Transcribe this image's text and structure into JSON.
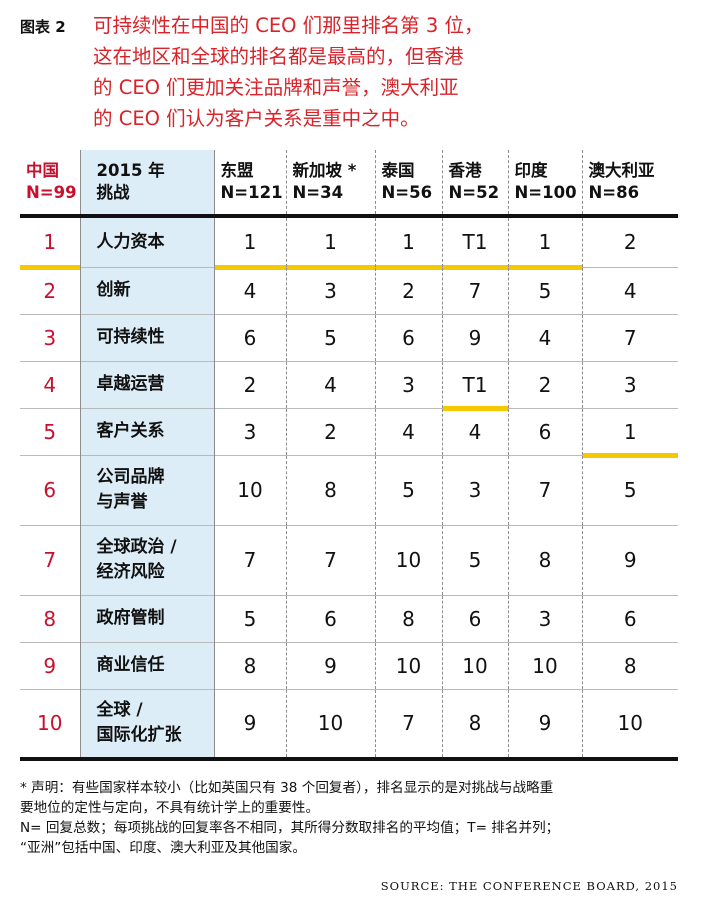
{
  "figure": {
    "label": "图表 2",
    "caption_lines": [
      "可持续性在中国的 CEO 们那里排名第 3 位，",
      "这在地区和全球的排名都是最高的，但香港",
      "的 CEO 们更加关注品牌和声誉，澳大利亚",
      "的 CEO 们认为客户关系是重中之中。"
    ]
  },
  "table": {
    "headers": {
      "china_line1": "中国",
      "china_line2": "N=99",
      "challenge_line1": "2015 年",
      "challenge_line2": "挑战",
      "countries": [
        {
          "name": "东盟",
          "n": "N=121"
        },
        {
          "name": "新加坡 *",
          "n": "N=34"
        },
        {
          "name": "泰国",
          "n": "N=56"
        },
        {
          "name": "香港",
          "n": "N=52"
        },
        {
          "name": "印度",
          "n": "N=100"
        },
        {
          "name": "澳大利亚",
          "n": "N=86"
        }
      ]
    },
    "rows": [
      {
        "rank": "1",
        "challenge": [
          "人力资本"
        ],
        "values": [
          "1",
          "1",
          "1",
          "T1",
          "1",
          "2"
        ]
      },
      {
        "rank": "2",
        "challenge": [
          "创新"
        ],
        "values": [
          "4",
          "3",
          "2",
          "7",
          "5",
          "4"
        ]
      },
      {
        "rank": "3",
        "challenge": [
          "可持续性"
        ],
        "values": [
          "6",
          "5",
          "6",
          "9",
          "4",
          "7"
        ]
      },
      {
        "rank": "4",
        "challenge": [
          "卓越运营"
        ],
        "values": [
          "2",
          "4",
          "3",
          "T1",
          "2",
          "3"
        ]
      },
      {
        "rank": "5",
        "challenge": [
          "客户关系"
        ],
        "values": [
          "3",
          "2",
          "4",
          "4",
          "6",
          "1"
        ]
      },
      {
        "rank": "6",
        "challenge": [
          "公司品牌",
          "与声誉"
        ],
        "values": [
          "10",
          "8",
          "5",
          "3",
          "7",
          "5"
        ]
      },
      {
        "rank": "7",
        "challenge": [
          "全球政治 /",
          "经济风险"
        ],
        "values": [
          "7",
          "7",
          "10",
          "5",
          "8",
          "9"
        ]
      },
      {
        "rank": "8",
        "challenge": [
          "政府管制"
        ],
        "values": [
          "5",
          "6",
          "8",
          "6",
          "3",
          "6"
        ]
      },
      {
        "rank": "9",
        "challenge": [
          "商业信任"
        ],
        "values": [
          "8",
          "9",
          "10",
          "10",
          "10",
          "8"
        ]
      },
      {
        "rank": "10",
        "challenge": [
          "全球 /",
          "国际化扩张"
        ],
        "values": [
          "9",
          "10",
          "7",
          "8",
          "9",
          "10"
        ]
      }
    ]
  },
  "footnotes": [
    "*  声明：有些国家样本较小（比如英国只有 38 个回复者），排名显示的是对挑战与战略重",
    "要地位的定性与定向，不具有统计学上的重要性。",
    "N= 回复总数；每项挑战的回复率各不相同，其所得分数取排名的平均值；T= 排名并列；",
    "“亚洲”包括中国、印度、澳大利亚及其他国家。"
  ],
  "source": "SOURCE: THE CONFERENCE BOARD, 2015",
  "colors": {
    "accent_red": "#d8232a",
    "highlight_yellow": "#f5c800",
    "column_blue": "#dcedf7"
  }
}
